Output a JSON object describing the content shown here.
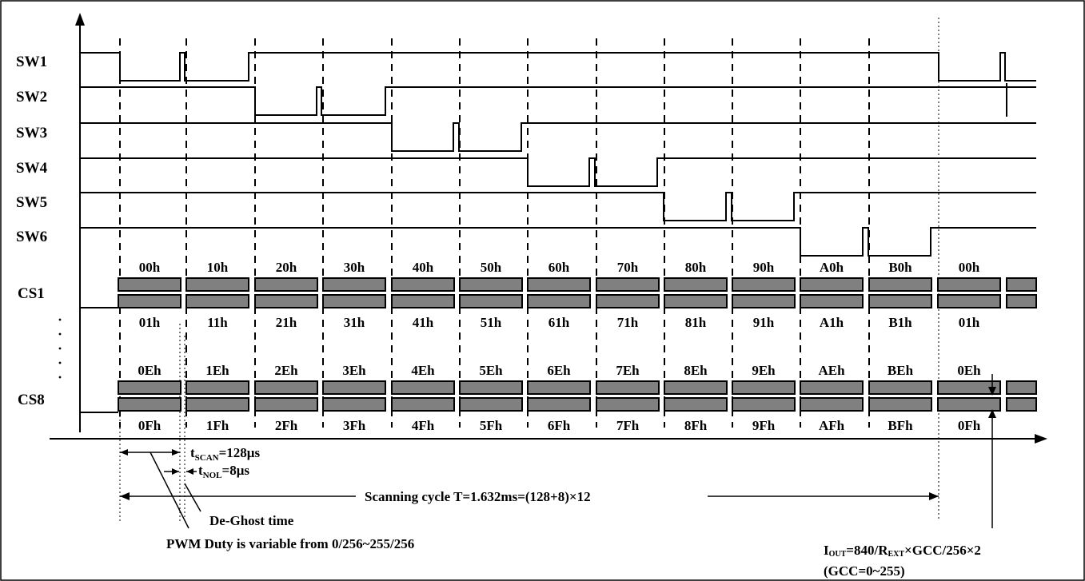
{
  "signals": [
    "SW1",
    "SW2",
    "SW3",
    "SW4",
    "SW5",
    "SW6"
  ],
  "current_sources": [
    {
      "label": "CS1",
      "top_row": [
        "00h",
        "10h",
        "20h",
        "30h",
        "40h",
        "50h",
        "60h",
        "70h",
        "80h",
        "90h",
        "A0h",
        "B0h",
        "00h"
      ],
      "bottom_row": [
        "01h",
        "11h",
        "21h",
        "31h",
        "41h",
        "51h",
        "61h",
        "71h",
        "81h",
        "91h",
        "A1h",
        "B1h",
        "01h"
      ]
    },
    {
      "label": "CS8",
      "top_row": [
        "0Eh",
        "1Eh",
        "2Eh",
        "3Eh",
        "4Eh",
        "5Eh",
        "6Eh",
        "7Eh",
        "8Eh",
        "9Eh",
        "AEh",
        "BEh",
        "0Eh"
      ],
      "bottom_row": [
        "0Fh",
        "1Fh",
        "2Fh",
        "3Fh",
        "4Fh",
        "5Fh",
        "6Fh",
        "7Fh",
        "8Fh",
        "9Fh",
        "AFh",
        "BFh",
        "0Fh"
      ]
    }
  ],
  "annotations": {
    "t_scan": {
      "main": "t",
      "sub": "SCAN",
      "rest": "=128μs"
    },
    "t_nol": {
      "main": "t",
      "sub": "NOL",
      "rest": "=8μs"
    },
    "scanning_cycle": "Scanning cycle T=1.632ms=(128+8)×12",
    "de_ghost": "De-Ghost time",
    "pwm_duty": "PWM Duty is variable from 0/256~255/256",
    "iout": {
      "i": "I",
      "sub1": "OUT",
      "mid": "=840/R",
      "sub2": "EXT",
      "rest": "×GCC/256×2"
    },
    "gcc": "(GCC=0~255)"
  }
}
